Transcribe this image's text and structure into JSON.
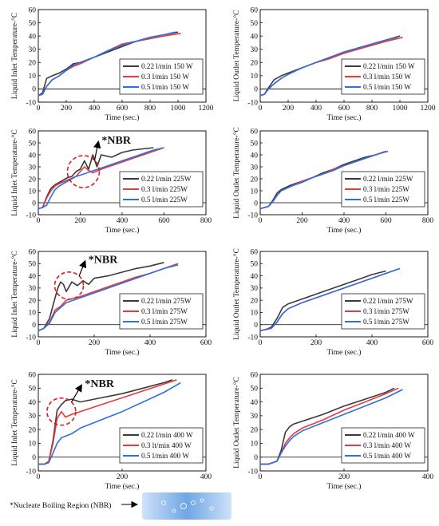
{
  "footnote": {
    "label": "*Nucleate Boiling Region (NBR)"
  },
  "colors": {
    "series_1": "#3a3a3a",
    "series_2": "#e83a3a",
    "series_3": "#2f6fe0",
    "annotation_circle": "#e21a1a",
    "bubble_image": "#7fb3ea"
  },
  "chart_data": [
    {
      "type": "line",
      "ylabel": "Liquid Inlet Temperature-°C",
      "xlabel": "Time (sec.)",
      "xlim": [
        0,
        1200
      ],
      "ylim": [
        -10,
        60
      ],
      "xticks": [
        0,
        200,
        400,
        600,
        800,
        1000,
        1200
      ],
      "yticks": [
        -10,
        0,
        10,
        20,
        30,
        40,
        50,
        60
      ],
      "legend_position": "lower-right",
      "annotation": null,
      "series": [
        {
          "name": "0.22 l/min 150 W",
          "x": [
            0,
            30,
            60,
            100,
            150,
            200,
            250,
            300,
            400,
            500,
            600,
            700,
            800,
            900,
            1000
          ],
          "y": [
            -5,
            -3,
            8,
            10,
            12,
            15,
            19,
            20,
            24,
            28,
            32,
            36,
            39,
            41,
            43
          ]
        },
        {
          "name": "0.3 l/min 150 W",
          "x": [
            0,
            30,
            60,
            100,
            150,
            200,
            250,
            300,
            400,
            500,
            600,
            700,
            800,
            900,
            1020
          ],
          "y": [
            -5,
            -4,
            2,
            7,
            10,
            14,
            17,
            19,
            24,
            29,
            34,
            36,
            38,
            40,
            42
          ]
        },
        {
          "name": "0.5 l/min 150 W",
          "x": [
            0,
            30,
            60,
            100,
            150,
            200,
            250,
            300,
            400,
            500,
            600,
            700,
            800,
            900,
            980
          ],
          "y": [
            -5,
            -4,
            2,
            7,
            10,
            14,
            18,
            20,
            24,
            29,
            33,
            36,
            39,
            41,
            43
          ]
        }
      ]
    },
    {
      "type": "line",
      "ylabel": "Liquid Outlet Temperature-°C",
      "xlabel": "Time (sec.)",
      "xlim": [
        0,
        1200
      ],
      "ylim": [
        -10,
        60
      ],
      "xticks": [
        0,
        200,
        400,
        600,
        800,
        1000,
        1200
      ],
      "yticks": [
        -10,
        0,
        10,
        20,
        30,
        40,
        50,
        60
      ],
      "legend_position": "lower-right",
      "annotation": null,
      "series": [
        {
          "name": "0.22 l/min 150 W",
          "x": [
            0,
            30,
            60,
            100,
            150,
            200,
            300,
            400,
            500,
            600,
            700,
            800,
            900,
            1000
          ],
          "y": [
            -5,
            -4,
            1,
            7,
            10,
            12,
            16,
            20,
            24,
            27,
            31,
            34,
            37,
            40
          ]
        },
        {
          "name": "0.3 l/min 150 W",
          "x": [
            0,
            30,
            60,
            100,
            150,
            200,
            300,
            400,
            500,
            600,
            700,
            800,
            900,
            1020
          ],
          "y": [
            -5,
            -4,
            0,
            4,
            8,
            11,
            16,
            20,
            23,
            27,
            30,
            33,
            36,
            39
          ]
        },
        {
          "name": "0.5 l/min 150 W",
          "x": [
            0,
            30,
            60,
            100,
            150,
            200,
            300,
            400,
            500,
            600,
            700,
            800,
            900,
            980
          ],
          "y": [
            -5,
            -4,
            0,
            4,
            8,
            11,
            16,
            20,
            24,
            28,
            31,
            34,
            37,
            39
          ]
        }
      ]
    },
    {
      "type": "line",
      "ylabel": "Liquid Inlet Temperature-°C",
      "xlabel": "Time (sec.)",
      "xlim": [
        0,
        800
      ],
      "ylim": [
        -10,
        60
      ],
      "xticks": [
        0,
        200,
        400,
        600,
        800
      ],
      "yticks": [
        -10,
        0,
        10,
        20,
        30,
        40,
        50,
        60
      ],
      "legend_position": "lower-right",
      "annotation": {
        "text": "*NBR",
        "cx": 215,
        "cy": 26,
        "text_x": 310,
        "text_y": 52
      },
      "series": [
        {
          "name": "0.22 l/min 225W",
          "x": [
            0,
            20,
            40,
            60,
            80,
            100,
            120,
            140,
            160,
            180,
            200,
            220,
            240,
            260,
            280,
            300,
            350,
            400,
            450,
            500,
            550
          ],
          "y": [
            -5,
            -4,
            5,
            12,
            15,
            17,
            19,
            21,
            22,
            26,
            28,
            35,
            28,
            40,
            30,
            40,
            38,
            42,
            44,
            45,
            46
          ]
        },
        {
          "name": "0.3 l/min 225W",
          "x": [
            0,
            20,
            40,
            60,
            80,
            100,
            140,
            180,
            200,
            220,
            240,
            260,
            300,
            350,
            400,
            450,
            500,
            550,
            600
          ],
          "y": [
            -5,
            -4,
            4,
            10,
            14,
            16,
            19,
            22,
            26,
            30,
            27,
            25,
            28,
            31,
            34,
            37,
            40,
            43,
            46
          ]
        },
        {
          "name": "0.5 l/min 225W",
          "x": [
            0,
            20,
            40,
            60,
            80,
            100,
            140,
            180,
            200,
            250,
            300,
            350,
            400,
            450,
            500,
            550,
            600
          ],
          "y": [
            -5,
            -4,
            -2,
            5,
            11,
            14,
            18,
            22,
            23,
            26,
            29,
            32,
            35,
            38,
            41,
            44,
            46
          ]
        }
      ]
    },
    {
      "type": "line",
      "ylabel": "Liquid Outlet Temperature-°C",
      "xlabel": "Time (sec.)",
      "xlim": [
        0,
        800
      ],
      "ylim": [
        -10,
        60
      ],
      "xticks": [
        0,
        200,
        400,
        600,
        800
      ],
      "yticks": [
        -10,
        0,
        10,
        20,
        30,
        40,
        50,
        60
      ],
      "legend_position": "lower-right",
      "annotation": null,
      "series": [
        {
          "name": "0.22 l/min 225W",
          "x": [
            0,
            20,
            40,
            60,
            80,
            100,
            150,
            200,
            250,
            300,
            350,
            400,
            450,
            500,
            550,
            600
          ],
          "y": [
            -5,
            -4,
            -3,
            2,
            8,
            11,
            15,
            18,
            21,
            25,
            28,
            32,
            35,
            38,
            40,
            43
          ]
        },
        {
          "name": "0.3 l/min 225W",
          "x": [
            0,
            20,
            40,
            60,
            80,
            100,
            150,
            200,
            250,
            300,
            350,
            400,
            450,
            500,
            550,
            600
          ],
          "y": [
            -5,
            -4,
            -3,
            1,
            6,
            10,
            14,
            18,
            21,
            24,
            28,
            31,
            34,
            37,
            40,
            43
          ]
        },
        {
          "name": "0.5 l/min 225W",
          "x": [
            0,
            20,
            40,
            60,
            80,
            100,
            150,
            200,
            250,
            300,
            350,
            400,
            450,
            500,
            550,
            610
          ],
          "y": [
            -5,
            -4,
            -3,
            1,
            6,
            10,
            14,
            17,
            21,
            24,
            27,
            31,
            34,
            37,
            40,
            43
          ]
        }
      ]
    },
    {
      "type": "line",
      "ylabel": "Liquid Inlet Temperature-°C",
      "xlabel": "Time (sec.)",
      "xlim": [
        0,
        600
      ],
      "ylim": [
        -10,
        60
      ],
      "xticks": [
        0,
        200,
        400,
        600
      ],
      "yticks": [
        -10,
        0,
        10,
        20,
        30,
        40,
        50,
        60
      ],
      "legend_position": "lower-right",
      "annotation": {
        "text": "*NBR",
        "cx": 110,
        "cy": 32,
        "text_x": 185,
        "text_y": 53
      },
      "series": [
        {
          "name": "0.22 l/min 275W",
          "x": [
            0,
            20,
            40,
            60,
            70,
            80,
            90,
            100,
            120,
            140,
            160,
            180,
            200,
            250,
            300,
            350,
            400,
            450
          ],
          "y": [
            -5,
            -3,
            5,
            22,
            30,
            35,
            33,
            27,
            35,
            32,
            36,
            33,
            38,
            40,
            43,
            46,
            48,
            51
          ]
        },
        {
          "name": "0.3 l/min 275W",
          "x": [
            0,
            20,
            40,
            60,
            80,
            100,
            150,
            200,
            250,
            300,
            350,
            400,
            450,
            500
          ],
          "y": [
            -5,
            -3,
            2,
            12,
            15,
            20,
            23,
            27,
            31,
            35,
            39,
            42,
            46,
            50
          ]
        },
        {
          "name": "0.5 l/min 275W",
          "x": [
            0,
            20,
            40,
            60,
            80,
            100,
            150,
            200,
            250,
            300,
            350,
            400,
            450,
            500
          ],
          "y": [
            -5,
            -3,
            1,
            10,
            14,
            18,
            22,
            26,
            30,
            34,
            38,
            42,
            46,
            49
          ]
        }
      ]
    },
    {
      "type": "line",
      "ylabel": "Liquid Outlet Temperature-°C",
      "xlabel": "Time (sec.)",
      "xlim": [
        0,
        600
      ],
      "ylim": [
        -10,
        60
      ],
      "xticks": [
        0,
        200,
        400,
        600
      ],
      "yticks": [
        -10,
        0,
        10,
        20,
        30,
        40,
        50,
        60
      ],
      "legend_position": "lower-right",
      "annotation": null,
      "series": [
        {
          "name": "0.22 l/min 275W",
          "x": [
            0,
            20,
            40,
            60,
            80,
            100,
            150,
            200,
            250,
            300,
            350,
            400,
            450
          ],
          "y": [
            -5,
            -4,
            -2,
            5,
            14,
            17,
            21,
            25,
            29,
            33,
            37,
            41,
            44
          ]
        },
        {
          "name": "0.3 l/min 275W",
          "x": [
            0,
            20,
            40,
            60,
            80,
            100,
            150,
            200,
            250,
            300,
            350,
            400,
            450,
            500
          ],
          "y": [
            -5,
            -4,
            -3,
            2,
            9,
            13,
            18,
            22,
            26,
            30,
            34,
            38,
            42,
            46
          ]
        },
        {
          "name": "0.5 l/min 275W",
          "x": [
            0,
            20,
            40,
            60,
            80,
            100,
            150,
            200,
            250,
            300,
            350,
            400,
            450,
            500
          ],
          "y": [
            -5,
            -4,
            -3,
            2,
            9,
            13,
            18,
            22,
            26,
            30,
            34,
            38,
            42,
            46
          ]
        }
      ]
    },
    {
      "type": "line",
      "ylabel": "Liquid Inlet Temperature-°C",
      "xlabel": "Time (sec.)",
      "xlim": [
        0,
        400
      ],
      "ylim": [
        -10,
        60
      ],
      "xticks": [
        0,
        200,
        400
      ],
      "yticks": [
        -10,
        0,
        10,
        20,
        30,
        40,
        50,
        60
      ],
      "legend_position": "lower-right",
      "annotation": {
        "text": "*NBR",
        "cx": 55,
        "cy": 33,
        "text_x": 115,
        "text_y": 53
      },
      "series": [
        {
          "name": "0.22 l/min 400 W",
          "x": [
            0,
            15,
            25,
            35,
            45,
            55,
            65,
            80,
            100,
            150,
            200,
            250,
            300,
            320
          ],
          "y": [
            -5,
            -5,
            -3,
            12,
            34,
            38,
            41,
            42,
            40,
            43,
            46,
            50,
            54,
            56
          ]
        },
        {
          "name": "0.3 lt/min 400 W",
          "x": [
            0,
            15,
            25,
            35,
            45,
            55,
            65,
            80,
            100,
            150,
            200,
            250,
            300,
            330
          ],
          "y": [
            -5,
            -5,
            -3,
            10,
            28,
            33,
            29,
            31,
            33,
            38,
            43,
            48,
            53,
            56
          ]
        },
        {
          "name": "0.5 l/min 400 W",
          "x": [
            0,
            15,
            25,
            35,
            45,
            55,
            80,
            100,
            150,
            200,
            250,
            300,
            340
          ],
          "y": [
            -5,
            -5,
            -4,
            3,
            10,
            14,
            17,
            21,
            27,
            33,
            40,
            47,
            54
          ]
        }
      ]
    },
    {
      "type": "line",
      "ylabel": "Liquid Outlet Temperature-°C",
      "xlabel": "Time (sec.)",
      "xlim": [
        0,
        400
      ],
      "ylim": [
        -10,
        60
      ],
      "xticks": [
        0,
        200,
        400
      ],
      "yticks": [
        -10,
        0,
        10,
        20,
        30,
        40,
        50,
        60
      ],
      "legend_position": "lower-right",
      "annotation": null,
      "series": [
        {
          "name": "0.22 l/min 400 W",
          "x": [
            0,
            20,
            40,
            50,
            60,
            70,
            80,
            100,
            150,
            200,
            250,
            300,
            320
          ],
          "y": [
            -5,
            -5,
            -3,
            5,
            18,
            22,
            24,
            26,
            31,
            37,
            42,
            47,
            50
          ]
        },
        {
          "name": "0.3 l/min 400 W",
          "x": [
            0,
            20,
            40,
            50,
            60,
            70,
            80,
            100,
            150,
            200,
            250,
            300,
            330
          ],
          "y": [
            -5,
            -5,
            -3,
            3,
            10,
            14,
            17,
            21,
            27,
            34,
            40,
            46,
            50
          ]
        },
        {
          "name": "0.5 l/min 400 W",
          "x": [
            0,
            20,
            40,
            50,
            60,
            70,
            80,
            100,
            150,
            200,
            250,
            300,
            340
          ],
          "y": [
            -5,
            -5,
            -3,
            3,
            8,
            12,
            15,
            19,
            25,
            31,
            37,
            43,
            49
          ]
        }
      ]
    }
  ]
}
